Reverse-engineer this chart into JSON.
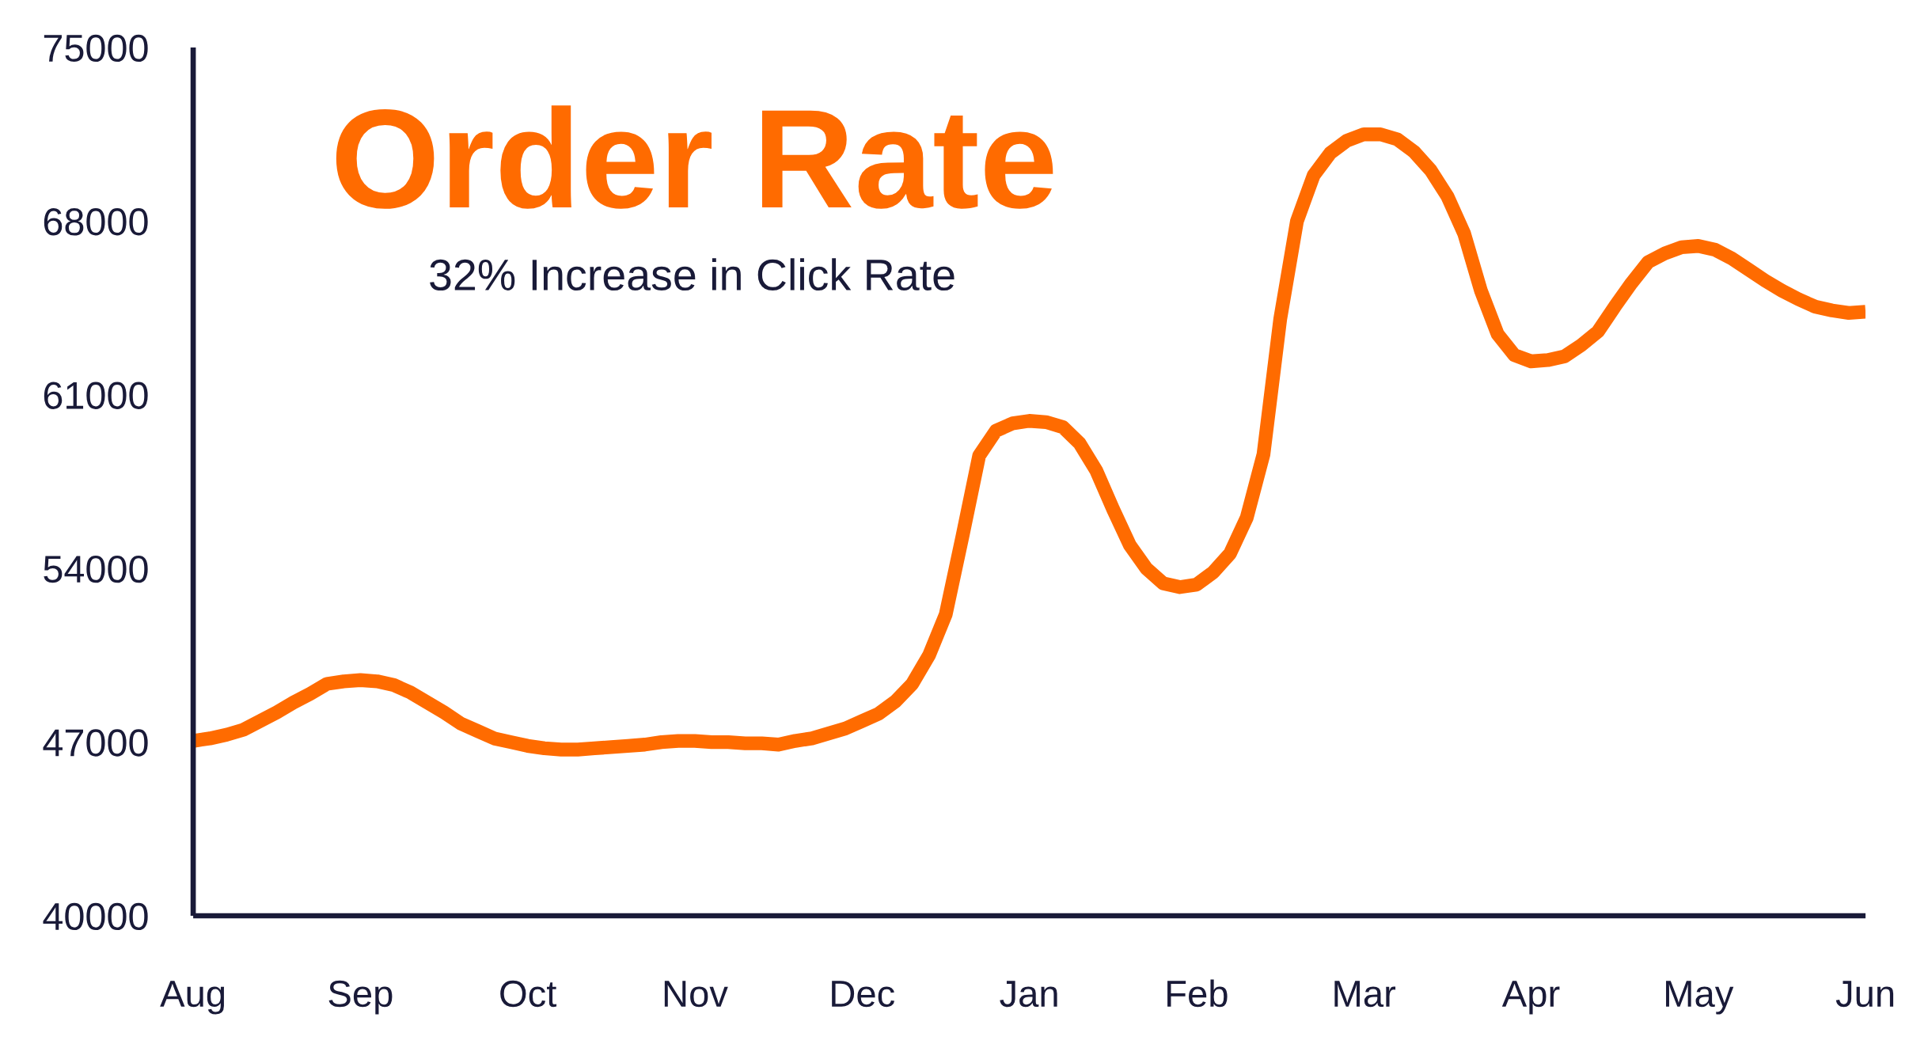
{
  "chart_data": {
    "type": "line",
    "title": "Order Rate",
    "subtitle": "32% Increase in Click Rate",
    "categories": [
      "Aug",
      null,
      null,
      null,
      null,
      null,
      null,
      null,
      null,
      null,
      "Sep",
      null,
      null,
      null,
      null,
      null,
      null,
      null,
      null,
      null,
      "Oct",
      null,
      null,
      null,
      null,
      null,
      null,
      null,
      null,
      null,
      "Nov",
      null,
      null,
      null,
      null,
      null,
      null,
      null,
      null,
      null,
      "Dec",
      null,
      null,
      null,
      null,
      null,
      null,
      null,
      null,
      null,
      "Jan",
      null,
      null,
      null,
      null,
      null,
      null,
      null,
      null,
      null,
      "Feb",
      null,
      null,
      null,
      null,
      null,
      null,
      null,
      null,
      null,
      "Mar",
      null,
      null,
      null,
      null,
      null,
      null,
      null,
      null,
      null,
      "Apr",
      null,
      null,
      null,
      null,
      null,
      null,
      null,
      null,
      null,
      "May",
      null,
      null,
      null,
      null,
      null,
      null,
      null,
      null,
      null,
      "Jun"
    ],
    "series": [
      {
        "color": "#ff6b00",
        "values": [
          47050,
          47150,
          47300,
          47500,
          47850,
          48200,
          48600,
          48950,
          49350,
          49450,
          49500,
          49450,
          49300,
          49000,
          48600,
          48200,
          47750,
          47450,
          47150,
          47000,
          46850,
          46750,
          46700,
          46700,
          46750,
          46800,
          46850,
          46900,
          47000,
          47050,
          47050,
          47000,
          47000,
          46950,
          46950,
          46900,
          47050,
          47150,
          47350,
          47550,
          47850,
          48150,
          48650,
          49350,
          50500,
          52150,
          55300,
          58550,
          59550,
          59850,
          59950,
          59900,
          59700,
          59050,
          57950,
          56400,
          54950,
          54000,
          53400,
          53250,
          53350,
          53850,
          54600,
          56050,
          58600,
          64050,
          68000,
          69850,
          70750,
          71250,
          71500,
          71500,
          71300,
          70800,
          70050,
          69000,
          67500,
          65200,
          63450,
          62600,
          62350,
          62400,
          62550,
          63000,
          63550,
          64550,
          65500,
          66350,
          66700,
          66950,
          67000,
          66850,
          66500,
          66050,
          65600,
          65200,
          64850,
          64550,
          64400,
          64300,
          64350
        ]
      }
    ],
    "ylim": [
      40000,
      75000
    ],
    "yticks": [
      40000,
      47000,
      54000,
      61000,
      68000,
      75000
    ],
    "line_style": "solid"
  }
}
